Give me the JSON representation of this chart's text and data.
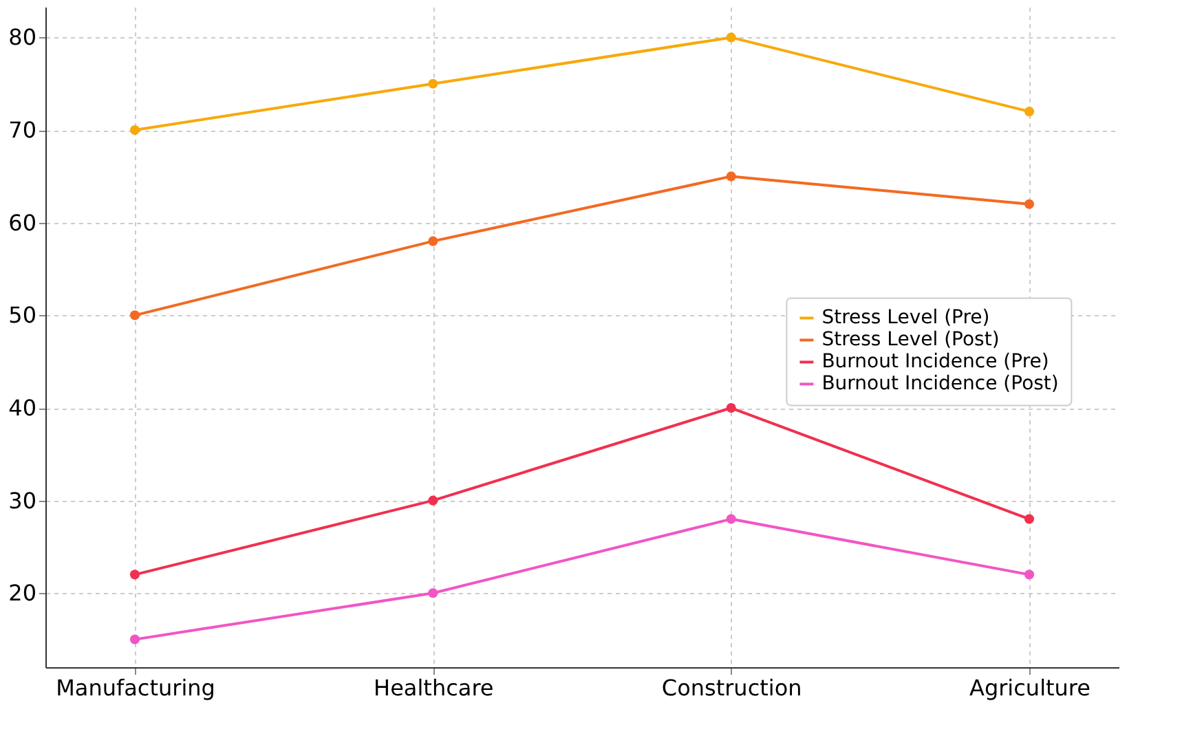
{
  "chart_data": {
    "type": "line",
    "categories": [
      "Manufacturing",
      "Healthcare",
      "Construction",
      "Agriculture"
    ],
    "series": [
      {
        "name": "Stress Level (Pre)",
        "color": "#f7a90b",
        "values": [
          70,
          75,
          80,
          72
        ]
      },
      {
        "name": "Stress Level (Post)",
        "color": "#f26a22",
        "values": [
          50,
          58,
          65,
          62
        ]
      },
      {
        "name": "Burnout Incidence (Pre)",
        "color": "#f0304f",
        "values": [
          22,
          30,
          40,
          28
        ]
      },
      {
        "name": "Burnout Incidence (Post)",
        "color": "#f255c4",
        "values": [
          15,
          20,
          28,
          22
        ]
      }
    ],
    "ylim": [
      12,
      83.3
    ],
    "yticks": [
      20,
      30,
      40,
      50,
      60,
      70,
      80
    ],
    "grid": true,
    "legend": "right",
    "marker": "circle",
    "line_style": "solid"
  }
}
